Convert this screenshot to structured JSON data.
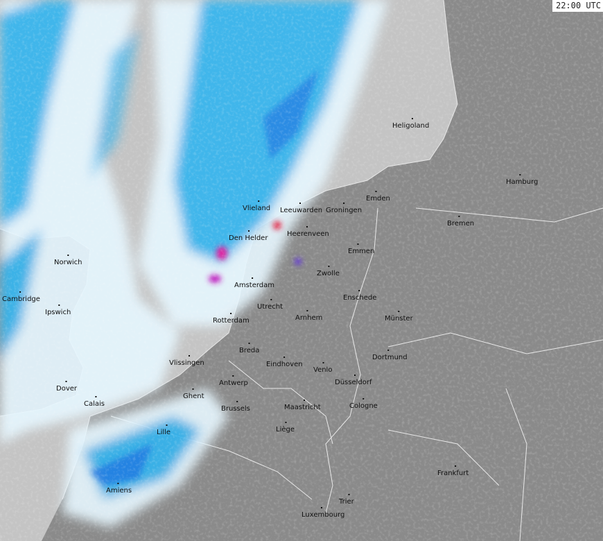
{
  "timestamp": "22:00 UTC",
  "colors": {
    "sea": "#c8c8c8",
    "land": "#8a8a8a",
    "light_precip": "#e6f7ff",
    "moderate_precip": "#33b5f0",
    "heavy_precip": "#1a6fe0",
    "intense_precip": "#e020a0"
  },
  "cities": [
    "Heligoland",
    "Hamburg",
    "Emden",
    "Bremen",
    "Vlieland",
    "Leeuwarden",
    "Groningen",
    "Heerenveen",
    "Den Helder",
    "Emmen",
    "Norwich",
    "Zwolle",
    "Amsterdam",
    "Cambridge",
    "Utrecht",
    "Enschede",
    "Ipswich",
    "Rotterdam",
    "Arnhem",
    "Münster",
    "Breda",
    "Dortmund",
    "Vlissingen",
    "Eindhoven",
    "Venlo",
    "Antwerp",
    "Düsseldorf",
    "Dover",
    "Ghent",
    "Calais",
    "Brussels",
    "Maastricht",
    "Cologne",
    "Lille",
    "Liège",
    "Frankfurt",
    "Amiens",
    "Trier",
    "Luxembourg"
  ]
}
